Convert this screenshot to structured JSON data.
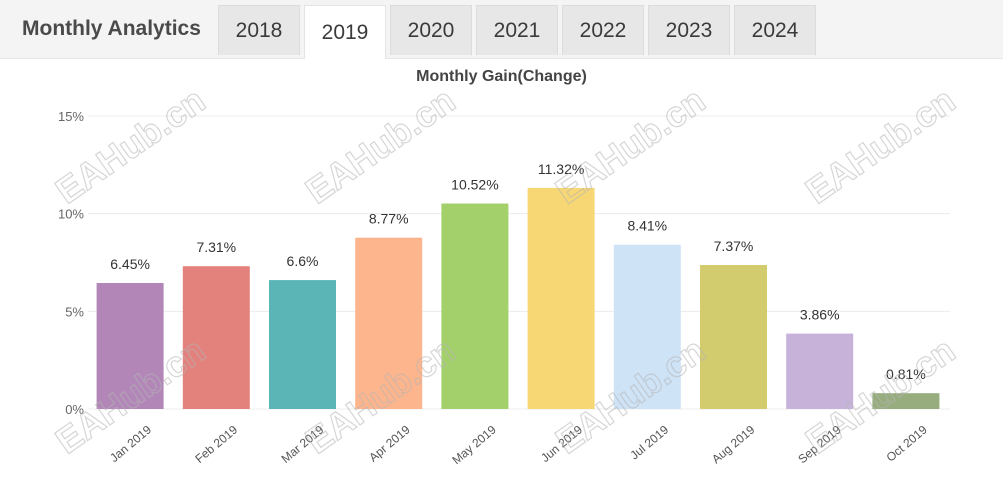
{
  "header": {
    "title": "Monthly Analytics",
    "tabs": [
      {
        "label": "2018",
        "active": false
      },
      {
        "label": "2019",
        "active": true
      },
      {
        "label": "2020",
        "active": false
      },
      {
        "label": "2021",
        "active": false
      },
      {
        "label": "2022",
        "active": false
      },
      {
        "label": "2023",
        "active": false
      },
      {
        "label": "2024",
        "active": false
      }
    ]
  },
  "watermark_text": "EAHub.cn",
  "chart_data": {
    "type": "bar",
    "title": "Monthly Gain(Change)",
    "xlabel": "",
    "ylabel": "",
    "ylim": [
      0,
      15
    ],
    "yticks": [
      {
        "value": 0,
        "label": "0%"
      },
      {
        "value": 5,
        "label": "5%"
      },
      {
        "value": 10,
        "label": "10%"
      },
      {
        "value": 15,
        "label": "15%"
      }
    ],
    "grid": true,
    "legend": "none",
    "categories": [
      "Jan 2019",
      "Feb 2019",
      "Mar 2019",
      "Apr 2019",
      "May 2019",
      "Jun 2019",
      "Jul 2019",
      "Aug 2019",
      "Sep 2019",
      "Oct 2019"
    ],
    "values": [
      6.45,
      7.31,
      6.6,
      8.77,
      10.52,
      11.32,
      8.41,
      7.37,
      3.86,
      0.81
    ],
    "data_labels": [
      "6.45%",
      "7.31%",
      "6.6%",
      "8.77%",
      "10.52%",
      "11.32%",
      "8.41%",
      "7.37%",
      "3.86%",
      "0.81%"
    ],
    "colors": [
      "#b287b8",
      "#e3827d",
      "#5bb4b6",
      "#fdb58d",
      "#a4d06c",
      "#f7d774",
      "#cfe3f7",
      "#d2cc6e",
      "#c7b3da",
      "#97ad7e"
    ]
  }
}
